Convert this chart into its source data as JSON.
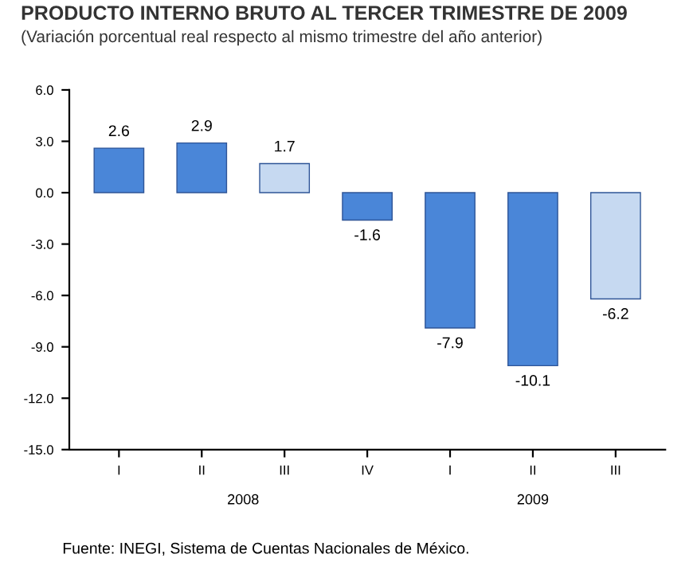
{
  "chart_data": {
    "type": "bar",
    "title": "PRODUCTO INTERNO BRUTO AL TERCER TRIMESTRE DE 2009",
    "subtitle": "(Variación porcentual real respecto al mismo trimestre del año anterior)",
    "categories": [
      "I",
      "II",
      "III",
      "IV",
      "I",
      "II",
      "III"
    ],
    "values": [
      2.6,
      2.9,
      1.7,
      -1.6,
      -7.9,
      -10.1,
      -6.2
    ],
    "colors": [
      "#4a86d8",
      "#4a86d8",
      "#c6d9f1",
      "#4a86d8",
      "#4a86d8",
      "#4a86d8",
      "#c6d9f1"
    ],
    "ylim": [
      -15,
      6
    ],
    "yticks": [
      {
        "value": 6,
        "label": "6.0"
      },
      {
        "value": 3,
        "label": "3.0"
      },
      {
        "value": 0,
        "label": "0.0"
      },
      {
        "value": -3,
        "label": "-3.0"
      },
      {
        "value": -6,
        "label": "-6.0"
      },
      {
        "value": -9,
        "label": "-9.0"
      },
      {
        "value": -12,
        "label": "-12.0"
      },
      {
        "value": -15,
        "label": "-15.0"
      }
    ],
    "data_labels": true,
    "grid": false,
    "legend": false,
    "annotations": [
      "2008",
      "2009",
      "Fuente: INEGI, Sistema de Cuentas Nacionales de México."
    ]
  }
}
